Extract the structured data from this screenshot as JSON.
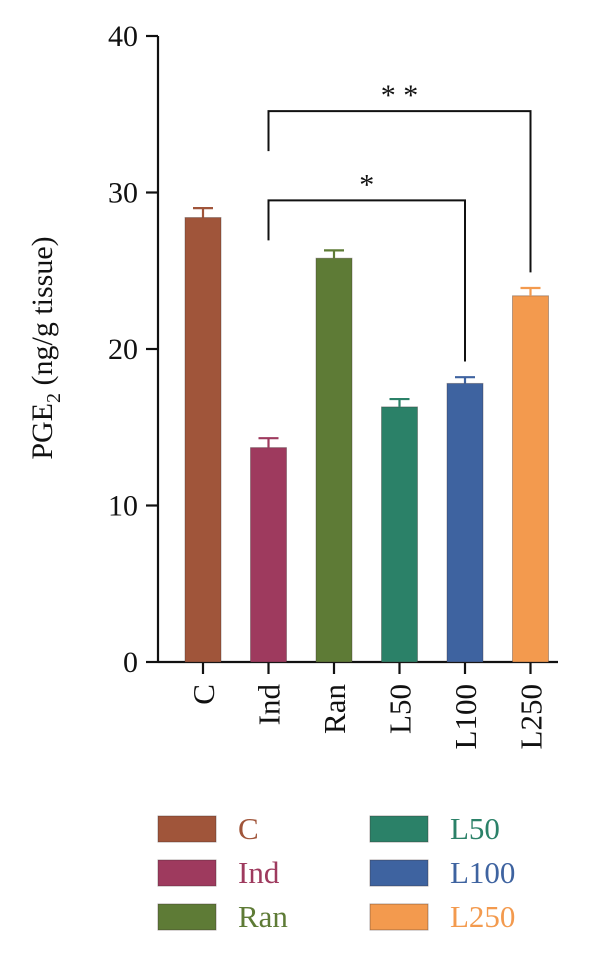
{
  "chart_data": {
    "type": "bar",
    "title": "",
    "ylabel": {
      "prefix": "PGE",
      "subscript": "2",
      "suffix": " (ng/g tissue)"
    },
    "ylim": [
      0,
      40
    ],
    "yticks": [
      0,
      10,
      20,
      30,
      40
    ],
    "categories": [
      "C",
      "Ind",
      "Ran",
      "L50",
      "L100",
      "L250"
    ],
    "values": [
      28.4,
      13.7,
      25.8,
      16.3,
      17.8,
      23.4
    ],
    "errors": [
      0.6,
      0.6,
      0.5,
      0.5,
      0.4,
      0.5
    ],
    "colors": [
      "#A0553A",
      "#9E3A5E",
      "#5E7B36",
      "#2B8168",
      "#3E63A0",
      "#F39A4E"
    ],
    "label_colors": [
      "#A0553A",
      "#9E3A5E",
      "#5E7B36",
      "#2B8168",
      "#3E63A0",
      "#F39A4E"
    ],
    "significance": [
      {
        "from": "Ind",
        "to": "L100",
        "label": "*",
        "level": 29.5
      },
      {
        "from": "Ind",
        "to": "L250",
        "label": "* *",
        "level": 35.2
      }
    ],
    "legend": {
      "placement": "bottom",
      "entries": [
        "C",
        "Ind",
        "Ran",
        "L50",
        "L100",
        "L250"
      ]
    },
    "grid": false
  }
}
